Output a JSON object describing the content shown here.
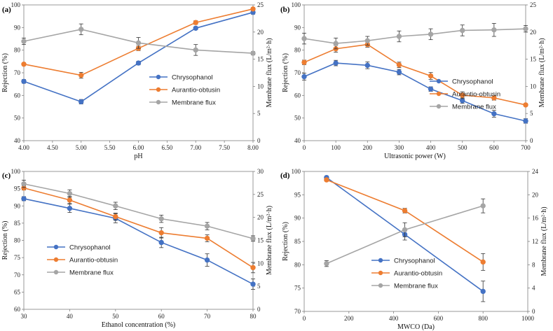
{
  "colors": {
    "series1": "#4472C4",
    "series2": "#ED7D31",
    "series3": "#A5A5A5",
    "axis": "#808080",
    "grid": "#D9D9D9"
  },
  "chart_data": [
    {
      "type": "line",
      "panel": "(a)",
      "xlabel": "pH",
      "ylabel": "Rejection (%)",
      "y2label": "Membrane flux (L/m²·h)",
      "xlim": [
        4,
        8
      ],
      "xticks": [
        4,
        4.5,
        5,
        5.5,
        6,
        6.5,
        7,
        7.5,
        8
      ],
      "xtick_labels": [
        "4.00",
        "4.50",
        "5.00",
        "5.50",
        "6.00",
        "6.50",
        "7.00",
        "7.50",
        "8.00"
      ],
      "ylim": [
        40,
        100
      ],
      "yticks": [
        40,
        50,
        60,
        70,
        80,
        90,
        100
      ],
      "y2lim": [
        0,
        25
      ],
      "y2ticks": [
        0,
        5,
        10,
        15,
        20,
        25
      ],
      "legend": "center-right",
      "series": [
        {
          "name": "Chrysophanol",
          "axis": "left",
          "x": [
            4,
            5,
            6,
            7,
            8
          ],
          "values": [
            66.2,
            57.2,
            74.3,
            89.7,
            96.7
          ],
          "errors": [
            0.8,
            1.0,
            0.8,
            0.6,
            0.8
          ]
        },
        {
          "name": "Aurantio-obtusin",
          "axis": "left",
          "x": [
            4,
            5,
            6,
            7,
            8
          ],
          "values": [
            73.8,
            68.9,
            80.8,
            92.2,
            98.2
          ],
          "errors": [
            0.6,
            1.3,
            1.0,
            0.8,
            0.6
          ]
        },
        {
          "name": "Membrane flux",
          "axis": "right",
          "x": [
            4,
            5,
            6,
            7,
            8
          ],
          "values": [
            18.3,
            20.5,
            18.0,
            16.7,
            16.1
          ],
          "errors": [
            0.6,
            1.0,
            1.0,
            1.0,
            0.3
          ]
        }
      ]
    },
    {
      "type": "line",
      "panel": "(b)",
      "xlabel": "Ultrasonic power (W)",
      "ylabel": "Rejection (%)",
      "y2label": "Membrane flux (L/m²·h)",
      "xlim": [
        0,
        700
      ],
      "xticks": [
        0,
        100,
        200,
        300,
        400,
        500,
        600,
        700
      ],
      "xtick_labels": [
        "0",
        "100",
        "200",
        "300",
        "400",
        "500",
        "600",
        "700"
      ],
      "ylim": [
        40,
        100
      ],
      "yticks": [
        40,
        50,
        60,
        70,
        80,
        90,
        100
      ],
      "y2lim": [
        0,
        25
      ],
      "y2ticks": [
        0,
        5,
        10,
        15,
        20,
        25
      ],
      "legend": "center-right",
      "series": [
        {
          "name": "Chrysophanol",
          "axis": "left",
          "x": [
            0,
            100,
            200,
            300,
            400,
            500,
            600,
            700
          ],
          "values": [
            68.3,
            74.3,
            73.3,
            70.3,
            62.8,
            57.7,
            51.9,
            48.7
          ],
          "errors": [
            1.5,
            1.2,
            1.5,
            1.2,
            1.0,
            1.2,
            1.5,
            1.0
          ]
        },
        {
          "name": "Aurantio-obtusin",
          "axis": "left",
          "x": [
            0,
            100,
            200,
            300,
            400,
            500,
            600,
            700
          ],
          "values": [
            74.6,
            80.6,
            82.5,
            73.5,
            68.6,
            60.1,
            58.9,
            55.8
          ],
          "errors": [
            1.0,
            1.5,
            1.2,
            1.2,
            1.5,
            1.5,
            1.0,
            0.6
          ]
        },
        {
          "name": "Membrane flux",
          "axis": "right",
          "x": [
            0,
            100,
            200,
            300,
            400,
            500,
            600,
            700
          ],
          "values": [
            18.8,
            17.9,
            18.4,
            19.2,
            19.6,
            20.3,
            20.4,
            20.6
          ],
          "errors": [
            1.0,
            1.0,
            0.8,
            1.0,
            1.0,
            1.0,
            1.2,
            0.6
          ]
        }
      ]
    },
    {
      "type": "line",
      "panel": "(c)",
      "xlabel": "Ethanol concentration (%)",
      "ylabel": "Rejection (%)",
      "y2label": "Membrane flux (L/m²·h)",
      "xlim": [
        30,
        80
      ],
      "xticks": [
        30,
        40,
        50,
        60,
        70,
        80
      ],
      "xtick_labels": [
        "30",
        "40",
        "50",
        "60",
        "70",
        "80"
      ],
      "ylim": [
        60,
        100
      ],
      "yticks": [
        60,
        65,
        70,
        75,
        80,
        85,
        90,
        95,
        100
      ],
      "y2lim": [
        0,
        30
      ],
      "y2ticks": [
        0,
        5,
        10,
        15,
        20,
        25,
        30
      ],
      "legend": "lower-left",
      "series": [
        {
          "name": "Chrysophanol",
          "axis": "left",
          "x": [
            30,
            40,
            50,
            60,
            70,
            80
          ],
          "values": [
            92.1,
            89.3,
            86.4,
            79.4,
            74.3,
            67.3
          ],
          "errors": [
            0.6,
            1.2,
            1.3,
            1.5,
            1.8,
            1.5
          ]
        },
        {
          "name": "Aurantio-obtusin",
          "axis": "left",
          "x": [
            30,
            40,
            50,
            60,
            70,
            80
          ],
          "values": [
            95.2,
            91.7,
            86.9,
            82.2,
            80.6,
            72.1
          ],
          "errors": [
            0.6,
            1.0,
            1.0,
            1.5,
            1.0,
            1.5
          ]
        },
        {
          "name": "Membrane flux",
          "axis": "right",
          "x": [
            30,
            40,
            50,
            60,
            70,
            80
          ],
          "values": [
            27.3,
            25.2,
            22.5,
            19.7,
            18.1,
            15.4
          ],
          "errors": [
            0.8,
            0.8,
            0.8,
            0.8,
            0.8,
            0.6
          ]
        }
      ]
    },
    {
      "type": "line",
      "panel": "(d)",
      "xlabel": "MWCO (Da)",
      "ylabel": "Rejection (%)",
      "y2label": "Membrane flux (L/m²·h)",
      "xlim": [
        0,
        1000
      ],
      "xticks": [
        0,
        200,
        400,
        600,
        800,
        1000
      ],
      "xtick_labels": [
        "0",
        "200",
        "400",
        "600",
        "800",
        "1000"
      ],
      "ylim": [
        70,
        100
      ],
      "yticks": [
        70,
        75,
        80,
        85,
        90,
        95,
        100
      ],
      "y2lim": [
        0,
        24
      ],
      "y2ticks": [
        0,
        4,
        8,
        12,
        16,
        20,
        24
      ],
      "legend": "lower-center",
      "series": [
        {
          "name": "Chrysophanol",
          "axis": "left",
          "x": [
            100,
            450,
            800
          ],
          "values": [
            98.7,
            86.5,
            74.3
          ],
          "errors": [
            0.3,
            1.2,
            2.2
          ]
        },
        {
          "name": "Aurantio-obtusin",
          "axis": "left",
          "x": [
            100,
            450,
            800
          ],
          "values": [
            98.2,
            91.6,
            80.6
          ],
          "errors": [
            0.3,
            0.5,
            1.8
          ]
        },
        {
          "name": "Membrane flux",
          "axis": "right",
          "x": [
            100,
            450,
            800
          ],
          "values": [
            8.2,
            14.0,
            18.1
          ],
          "errors": [
            0.5,
            1.2,
            1.2
          ]
        }
      ]
    }
  ]
}
